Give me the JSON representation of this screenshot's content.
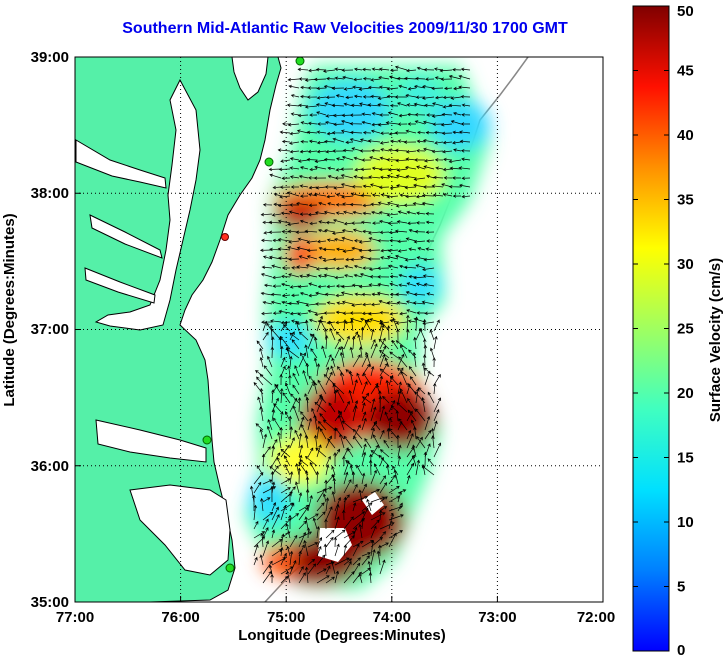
{
  "title": "Southern Mid-Atlantic Raw Velocities 2009/11/30 1700 GMT",
  "axes": {
    "xlabel": "Longitude (Degrees:Minutes)",
    "ylabel": "Latitude (Degrees:Minutes)",
    "x_ticks": [
      "77:00",
      "76:00",
      "75:00",
      "74:00",
      "73:00",
      "72:00"
    ],
    "y_ticks": [
      "39:00",
      "38:00",
      "37:00",
      "36:00",
      "35:00"
    ],
    "xlim": [
      -77,
      -72
    ],
    "ylim": [
      35,
      39
    ],
    "grid": "dotted"
  },
  "colorbar": {
    "label": "Surface Velocity (cm/s)",
    "min": 0,
    "max": 50,
    "ticks": [
      "0",
      "5",
      "10",
      "15",
      "20",
      "25",
      "30",
      "35",
      "40",
      "45",
      "50"
    ],
    "colormap": "jet"
  },
  "colors": {
    "land": "#55f0a8",
    "water": "#ffffff",
    "title": "#0000ee",
    "station": "#22dd22"
  }
}
